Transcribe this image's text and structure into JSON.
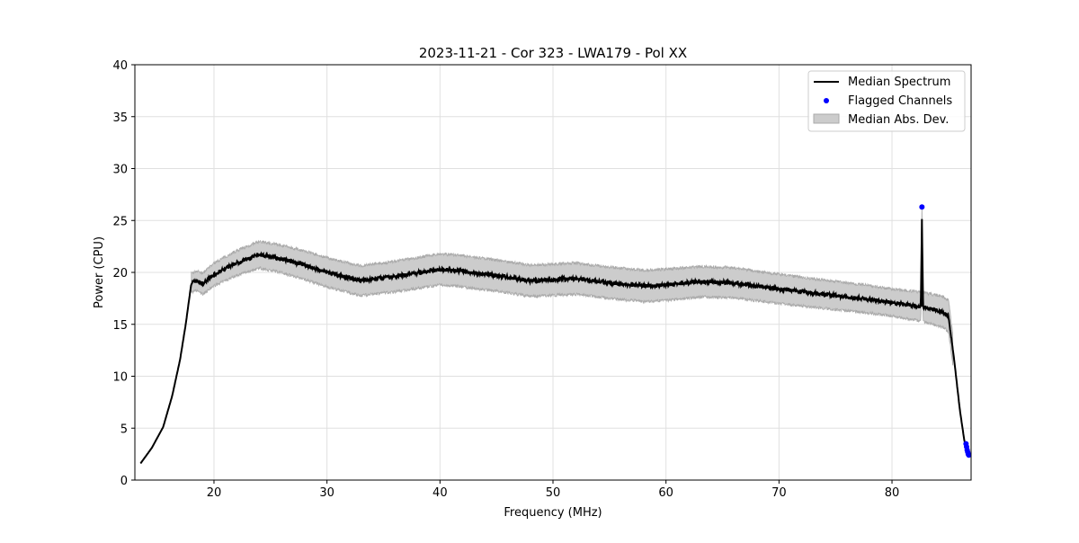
{
  "chart_data": {
    "type": "line",
    "title": "2023-11-21 - Cor 323 - LWA179 - Pol XX",
    "xlabel": "Frequency (MHz)",
    "ylabel": "Power (CPU)",
    "xlim": [
      13.0,
      87.0
    ],
    "ylim": [
      0,
      40
    ],
    "xticks": [
      20,
      30,
      40,
      50,
      60,
      70,
      80
    ],
    "yticks": [
      0,
      5,
      10,
      15,
      20,
      25,
      30,
      35,
      40
    ],
    "grid": true,
    "legend_placement": "top-right",
    "legend": [
      "Median Spectrum",
      "Flagged Channels",
      "Median Abs. Dev."
    ],
    "series": [
      {
        "name": "Median Spectrum",
        "color": "#000000",
        "x": [
          13.5,
          14.5,
          15.5,
          16.3,
          17.0,
          17.5,
          18.0,
          18.5,
          19.0,
          20.0,
          22.0,
          24.0,
          26.0,
          28.0,
          30.0,
          33.0,
          36.0,
          40.0,
          42.0,
          45.0,
          48.0,
          52.0,
          55.0,
          58.0,
          60.0,
          63.0,
          66.0,
          70.0,
          74.0,
          78.0,
          82.0,
          82.55,
          82.65,
          82.75,
          83.0,
          84.5,
          85.0,
          85.5,
          86.0,
          86.4,
          86.8
        ],
        "y": [
          1.6,
          3.1,
          5.1,
          8.1,
          11.6,
          15.0,
          19.0,
          19.2,
          18.9,
          19.8,
          20.9,
          21.7,
          21.3,
          20.7,
          20.0,
          19.2,
          19.6,
          20.3,
          20.1,
          19.7,
          19.2,
          19.4,
          19.0,
          18.7,
          18.8,
          19.1,
          19.0,
          18.4,
          17.9,
          17.4,
          16.8,
          16.7,
          25.1,
          16.7,
          16.6,
          16.2,
          15.8,
          11.6,
          6.8,
          3.8,
          2.5
        ]
      },
      {
        "name": "Median Abs. Dev.",
        "color": "#cccccc",
        "x": [
          18.0,
          20.0,
          25.0,
          30.0,
          40.0,
          50.0,
          60.0,
          70.0,
          80.0,
          85.0
        ],
        "y": [
          0.9,
          1.1,
          1.3,
          1.4,
          1.5,
          1.5,
          1.5,
          1.4,
          1.3,
          1.5
        ]
      },
      {
        "name": "Flagged Channels",
        "color": "#0000ff",
        "x": [
          82.65,
          86.55,
          86.6,
          86.65,
          86.7,
          86.75,
          86.8
        ],
        "y": [
          26.3,
          3.5,
          3.2,
          2.9,
          2.7,
          2.5,
          2.4
        ]
      }
    ]
  }
}
